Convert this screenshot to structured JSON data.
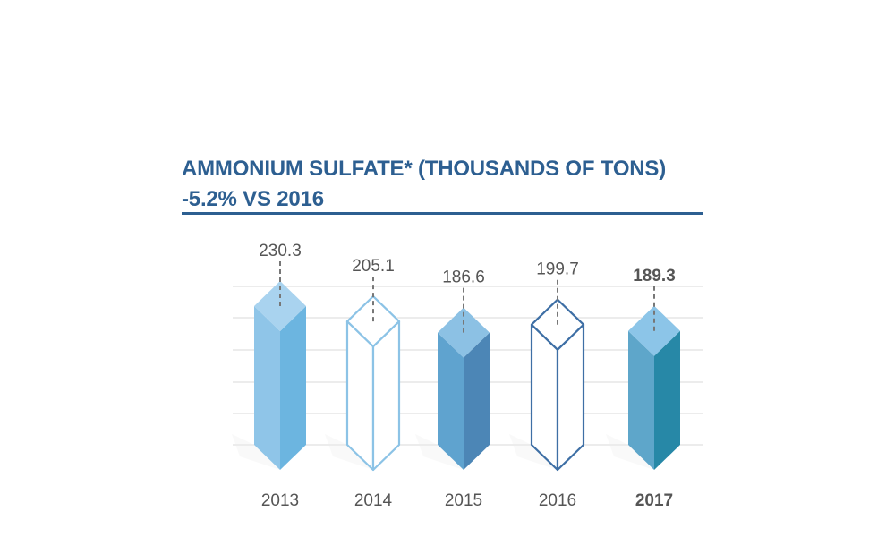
{
  "title": {
    "line1": "AMMONIUM SULFATE* (THOUSANDS OF TONS)",
    "line2": "-5.2% VS 2016"
  },
  "colors": {
    "title": "#2d5f91",
    "grid": "#d9d9d9",
    "label": "#555555"
  },
  "chart_data": {
    "type": "bar",
    "title": "AMMONIUM SULFATE* (THOUSANDS OF TONS)",
    "subtitle": "-5.2% VS 2016",
    "categories": [
      "2013",
      "2014",
      "2015",
      "2016",
      "2017"
    ],
    "values": [
      230.3,
      205.1,
      186.6,
      199.7,
      189.3
    ],
    "value_labels": [
      "230.3",
      "205.1",
      "186.6",
      "199.7",
      "189.3"
    ],
    "highlight": "2017",
    "grid": true,
    "bar_styles": [
      {
        "style": "solid",
        "top": "#a9d3ef",
        "left": "#8fc5e8",
        "right": "#6cb5e0"
      },
      {
        "style": "outline",
        "stroke": "#8cc3e6"
      },
      {
        "style": "solid",
        "top": "#8cc1e4",
        "left": "#5fa3cf",
        "right": "#4c86b6"
      },
      {
        "style": "outline",
        "stroke": "#3e6fa5"
      },
      {
        "style": "solid",
        "top": "#8cc5e8",
        "left": "#5ea6ca",
        "right": "#2788a7"
      }
    ]
  }
}
